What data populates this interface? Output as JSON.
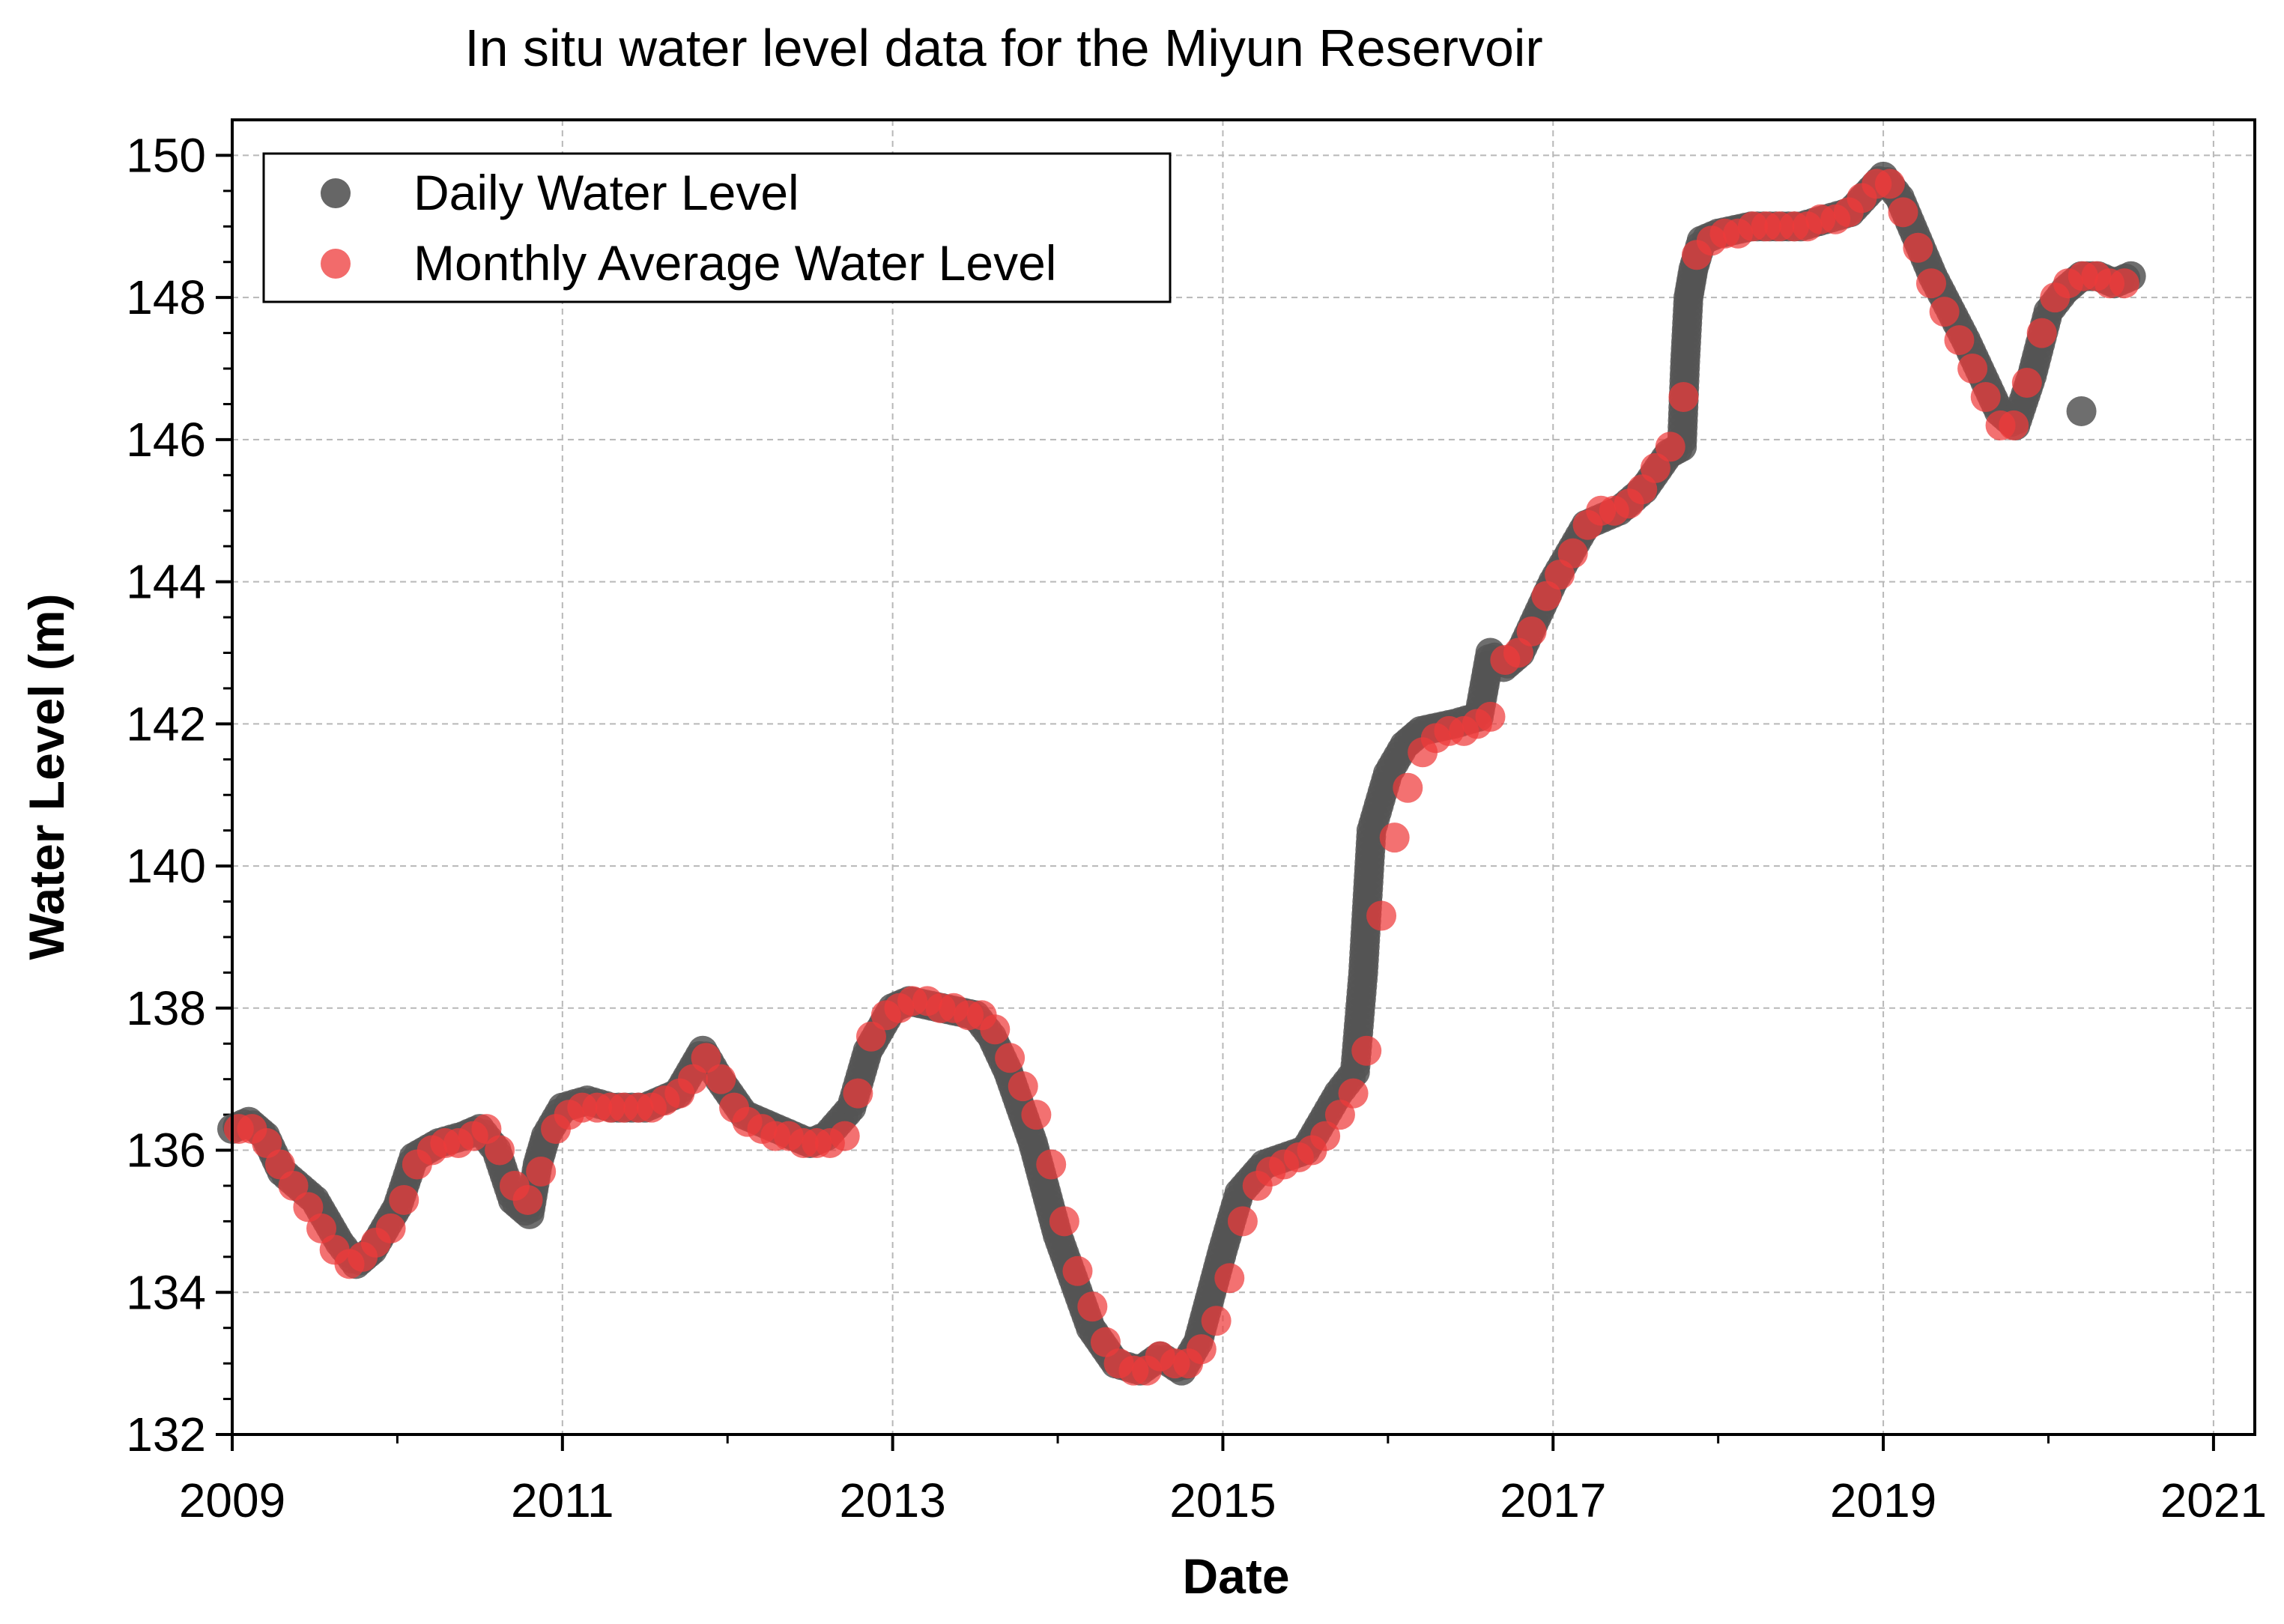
{
  "chart_data": {
    "type": "scatter",
    "title": "In situ water level data for the Miyun Reservoir",
    "xlabel": "Date",
    "ylabel": "Water Level (m)",
    "xlim": [
      2009,
      2021.25
    ],
    "ylim": [
      132,
      150.5
    ],
    "xticks": [
      2009,
      2011,
      2013,
      2015,
      2017,
      2019,
      2021
    ],
    "yticks": [
      132,
      134,
      136,
      138,
      140,
      142,
      144,
      146,
      148,
      150
    ],
    "grid": true,
    "legend_position": "top-left",
    "series": [
      {
        "name": "Daily Water Level",
        "color": "#555555",
        "x": [
          2009.0,
          2009.1,
          2009.2,
          2009.3,
          2009.5,
          2009.65,
          2009.75,
          2009.85,
          2010.0,
          2010.1,
          2010.25,
          2010.4,
          2010.5,
          2010.6,
          2010.7,
          2010.8,
          2010.85,
          2010.9,
          2011.0,
          2011.15,
          2011.3,
          2011.5,
          2011.7,
          2011.85,
          2011.95,
          2012.1,
          2012.3,
          2012.5,
          2012.6,
          2012.75,
          2012.85,
          2013.0,
          2013.1,
          2013.3,
          2013.5,
          2013.6,
          2013.7,
          2013.85,
          2014.0,
          2014.2,
          2014.35,
          2014.5,
          2014.62,
          2014.75,
          2014.85,
          2015.0,
          2015.1,
          2015.25,
          2015.5,
          2015.6,
          2015.7,
          2015.8,
          2015.85,
          2015.9,
          2016.0,
          2016.1,
          2016.2,
          2016.4,
          2016.55,
          2016.62,
          2016.7,
          2016.8,
          2017.0,
          2017.2,
          2017.4,
          2017.55,
          2017.7,
          2017.78,
          2017.8,
          2017.82,
          2017.85,
          2017.9,
          2018.0,
          2018.2,
          2018.5,
          2018.8,
          2019.0,
          2019.1,
          2019.3,
          2019.5,
          2019.7,
          2019.8,
          2019.9,
          2020.0,
          2020.1,
          2020.2,
          2020.3,
          2020.4,
          2020.5,
          2020.2
        ],
        "values": [
          136.3,
          136.4,
          136.2,
          135.7,
          135.3,
          134.7,
          134.4,
          134.6,
          135.2,
          135.9,
          136.1,
          136.2,
          136.3,
          136.0,
          135.3,
          135.1,
          135.8,
          136.2,
          136.6,
          136.7,
          136.6,
          136.6,
          136.8,
          137.4,
          137.0,
          136.5,
          136.3,
          136.1,
          136.2,
          136.6,
          137.4,
          138.0,
          138.1,
          138.0,
          137.9,
          137.6,
          137.1,
          136.1,
          134.8,
          133.5,
          133.0,
          132.9,
          133.1,
          132.9,
          133.3,
          134.6,
          135.4,
          135.8,
          136.0,
          136.4,
          136.8,
          137.1,
          138.5,
          140.5,
          141.3,
          141.7,
          141.9,
          142.0,
          142.1,
          143.0,
          142.8,
          143.0,
          144.0,
          144.8,
          145.0,
          145.3,
          145.8,
          145.9,
          147.1,
          148.0,
          148.4,
          148.8,
          148.9,
          149.0,
          149.0,
          149.2,
          149.7,
          149.4,
          148.3,
          147.4,
          146.4,
          146.2,
          146.9,
          147.8,
          148.1,
          148.3,
          148.3,
          148.2,
          148.3,
          146.4
        ]
      },
      {
        "name": "Monthly Average Water Level",
        "color": "#ee3a3a",
        "x": [
          2009.04,
          2009.12,
          2009.21,
          2009.29,
          2009.37,
          2009.46,
          2009.54,
          2009.62,
          2009.71,
          2009.79,
          2009.87,
          2009.96,
          2010.04,
          2010.12,
          2010.21,
          2010.29,
          2010.37,
          2010.46,
          2010.54,
          2010.62,
          2010.71,
          2010.79,
          2010.87,
          2010.96,
          2011.04,
          2011.12,
          2011.21,
          2011.29,
          2011.37,
          2011.46,
          2011.54,
          2011.62,
          2011.71,
          2011.79,
          2011.87,
          2011.96,
          2012.04,
          2012.12,
          2012.21,
          2012.29,
          2012.37,
          2012.46,
          2012.54,
          2012.62,
          2012.71,
          2012.79,
          2012.87,
          2012.96,
          2013.04,
          2013.12,
          2013.21,
          2013.29,
          2013.37,
          2013.46,
          2013.54,
          2013.62,
          2013.71,
          2013.79,
          2013.87,
          2013.96,
          2014.04,
          2014.12,
          2014.21,
          2014.29,
          2014.37,
          2014.46,
          2014.54,
          2014.62,
          2014.71,
          2014.79,
          2014.87,
          2014.96,
          2015.04,
          2015.12,
          2015.21,
          2015.29,
          2015.37,
          2015.46,
          2015.54,
          2015.62,
          2015.71,
          2015.79,
          2015.87,
          2015.96,
          2016.04,
          2016.12,
          2016.21,
          2016.29,
          2016.37,
          2016.46,
          2016.54,
          2016.62,
          2016.71,
          2016.79,
          2016.87,
          2016.96,
          2017.04,
          2017.12,
          2017.21,
          2017.29,
          2017.37,
          2017.46,
          2017.54,
          2017.62,
          2017.71,
          2017.79,
          2017.87,
          2017.96,
          2018.04,
          2018.12,
          2018.21,
          2018.29,
          2018.37,
          2018.46,
          2018.54,
          2018.62,
          2018.71,
          2018.79,
          2018.87,
          2018.96,
          2019.04,
          2019.12,
          2019.21,
          2019.29,
          2019.37,
          2019.46,
          2019.54,
          2019.62,
          2019.71,
          2019.79,
          2019.87,
          2019.96,
          2020.04,
          2020.12,
          2020.21,
          2020.29,
          2020.37,
          2020.46
        ],
        "values": [
          136.3,
          136.3,
          136.1,
          135.8,
          135.5,
          135.2,
          134.9,
          134.6,
          134.4,
          134.5,
          134.7,
          134.9,
          135.3,
          135.8,
          136.0,
          136.1,
          136.1,
          136.2,
          136.3,
          136.0,
          135.5,
          135.3,
          135.7,
          136.3,
          136.5,
          136.6,
          136.6,
          136.6,
          136.6,
          136.6,
          136.6,
          136.7,
          136.8,
          137.0,
          137.3,
          137.0,
          136.6,
          136.4,
          136.3,
          136.2,
          136.2,
          136.1,
          136.1,
          136.1,
          136.2,
          136.8,
          137.6,
          137.9,
          138.0,
          138.1,
          138.1,
          138.0,
          138.0,
          137.9,
          137.9,
          137.7,
          137.3,
          136.9,
          136.5,
          135.8,
          135.0,
          134.3,
          133.8,
          133.3,
          133.0,
          132.9,
          132.9,
          133.1,
          133.0,
          133.0,
          133.2,
          133.6,
          134.2,
          135.0,
          135.5,
          135.7,
          135.8,
          135.9,
          136.0,
          136.2,
          136.5,
          136.8,
          137.4,
          139.3,
          140.4,
          141.1,
          141.6,
          141.8,
          141.9,
          141.9,
          142.0,
          142.1,
          142.9,
          143.0,
          143.3,
          143.8,
          144.1,
          144.4,
          144.8,
          145.0,
          145.0,
          145.1,
          145.3,
          145.6,
          145.9,
          146.6,
          148.6,
          148.8,
          148.9,
          148.9,
          149.0,
          149.0,
          149.0,
          149.0,
          149.0,
          149.1,
          149.1,
          149.2,
          149.4,
          149.6,
          149.6,
          149.2,
          148.7,
          148.2,
          147.8,
          147.4,
          147.0,
          146.6,
          146.2,
          146.2,
          146.8,
          147.5,
          148.0,
          148.2,
          148.3,
          148.3,
          148.2,
          148.2
        ]
      }
    ]
  }
}
